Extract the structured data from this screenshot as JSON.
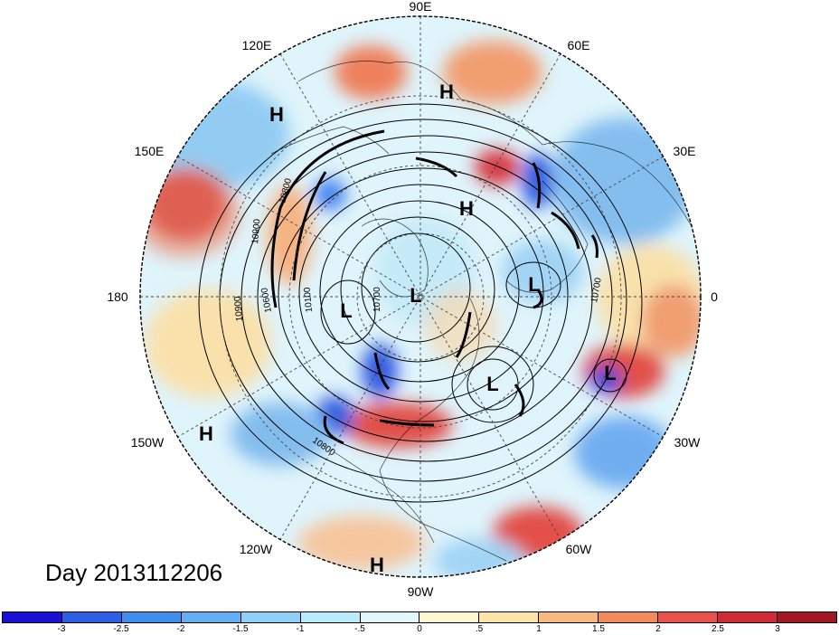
{
  "map": {
    "longitude_labels": [
      "90E",
      "60E",
      "30E",
      "0",
      "30W",
      "60W",
      "90W",
      "120W",
      "150W",
      "180",
      "150E",
      "120E"
    ],
    "pressure_centers": [
      {
        "name": "high-120e",
        "label": "H"
      },
      {
        "name": "high-90e",
        "label": "H"
      },
      {
        "name": "high-center",
        "label": "H"
      },
      {
        "name": "low-atlantic",
        "label": "L"
      },
      {
        "name": "low-pole",
        "label": "L"
      },
      {
        "name": "low-pacific",
        "label": "L"
      },
      {
        "name": "low-scandinavia",
        "label": "L"
      },
      {
        "name": "low-hudson",
        "label": "L"
      },
      {
        "name": "high-150w",
        "label": "H"
      },
      {
        "name": "high-90w",
        "label": "H"
      }
    ],
    "contour_labels": [
      "10800",
      "10900",
      "10900",
      "10600",
      "10100",
      "10700",
      "10700",
      "10800"
    ]
  },
  "date_label": "Day 2013112206",
  "colorbar": {
    "colors": [
      "#1a0fd4",
      "#2b5fe6",
      "#3f8ff0",
      "#63aff5",
      "#8fd0f8",
      "#b8ecfb",
      "#e2f8fc",
      "#fdf7d2",
      "#fbe4a5",
      "#f7b97d",
      "#f28a5e",
      "#e9524a",
      "#cf2a35",
      "#a31725"
    ],
    "tick_labels": [
      "-3",
      "-2.5",
      "-2",
      "-1.5",
      "-1",
      "-.5",
      "0",
      ".5",
      "1",
      "1.5",
      "2",
      "2.5",
      "3"
    ]
  }
}
